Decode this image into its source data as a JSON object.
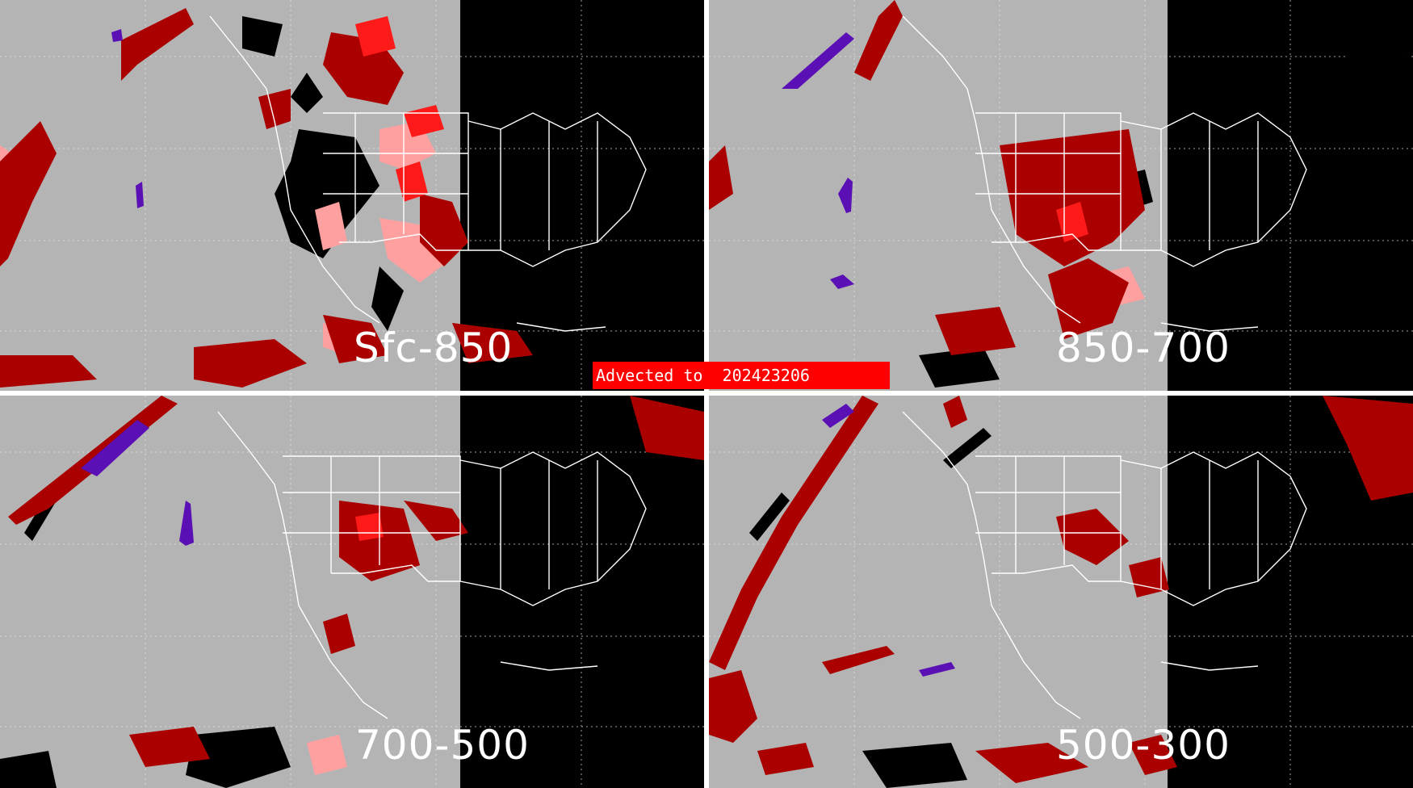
{
  "banner": {
    "text": "Advected to  202423206",
    "color": "#ff0000"
  },
  "panels": [
    {
      "id": "tl",
      "label": "Sfc-850"
    },
    {
      "id": "tr",
      "label": "850-700"
    },
    {
      "id": "bl",
      "label": "700-500"
    },
    {
      "id": "br",
      "label": "500-300"
    }
  ],
  "colors": {
    "background": "#b4b4b4",
    "night_side": "#000000",
    "dark_red": "#aa0000",
    "bright_red": "#ff1a1a",
    "pink": "#ffa0a0",
    "purple": "#5a10b4",
    "boundaries": "#ffffff",
    "divider": "#ffffff"
  }
}
